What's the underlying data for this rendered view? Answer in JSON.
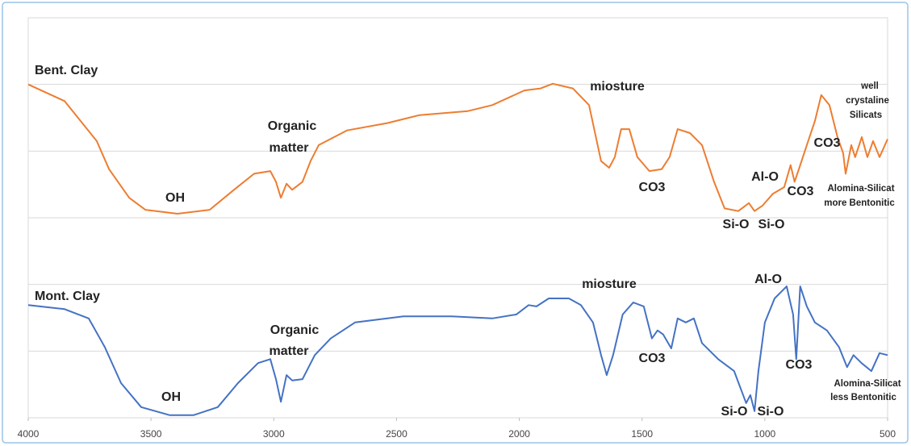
{
  "chart_data": {
    "type": "line",
    "xlim": [
      4000,
      500
    ],
    "xticks": [
      4000,
      3500,
      3000,
      2500,
      2000,
      1500,
      1000,
      500
    ],
    "ylim": [
      0,
      6
    ],
    "yticks": [
      0,
      1,
      2,
      3,
      4,
      5,
      6
    ],
    "grid": true,
    "series": [
      {
        "name": "Bent. Clay",
        "color": "#ED7D31",
        "x": [
          4000,
          3852,
          3721,
          3671,
          3589,
          3523,
          3392,
          3261,
          3162,
          3080,
          3014,
          2991,
          2971,
          2948,
          2925,
          2883,
          2850,
          2817,
          2702,
          2538,
          2406,
          2209,
          2110,
          1979,
          1913,
          1864,
          1782,
          1716,
          1667,
          1634,
          1611,
          1585,
          1552,
          1519,
          1470,
          1420,
          1388,
          1355,
          1305,
          1256,
          1207,
          1164,
          1108,
          1065,
          1042,
          1010,
          967,
          921,
          895,
          879,
          862,
          829,
          796,
          770,
          737,
          704,
          681,
          671,
          648,
          632,
          605,
          582,
          559,
          533,
          500
        ],
        "values": [
          5.0,
          4.75,
          4.15,
          3.73,
          3.3,
          3.12,
          3.06,
          3.12,
          3.42,
          3.66,
          3.7,
          3.54,
          3.3,
          3.51,
          3.42,
          3.54,
          3.85,
          4.09,
          4.31,
          4.42,
          4.54,
          4.6,
          4.69,
          4.91,
          4.94,
          5.01,
          4.94,
          4.69,
          3.85,
          3.75,
          3.91,
          4.33,
          4.33,
          3.91,
          3.7,
          3.73,
          3.91,
          4.33,
          4.27,
          4.09,
          3.54,
          3.14,
          3.1,
          3.22,
          3.1,
          3.18,
          3.36,
          3.46,
          3.79,
          3.54,
          3.72,
          4.09,
          4.45,
          4.84,
          4.69,
          4.21,
          3.97,
          3.66,
          4.09,
          3.91,
          4.21,
          3.91,
          4.15,
          3.91,
          4.18
        ]
      },
      {
        "name": "Mont. Clay",
        "color": "#4472C4",
        "x": [
          4000,
          3852,
          3754,
          3688,
          3622,
          3540,
          3425,
          3326,
          3228,
          3146,
          3064,
          3014,
          2991,
          2971,
          2948,
          2925,
          2883,
          2833,
          2768,
          2669,
          2472,
          2275,
          2110,
          2012,
          1962,
          1930,
          1880,
          1798,
          1749,
          1700,
          1667,
          1644,
          1618,
          1579,
          1536,
          1493,
          1460,
          1437,
          1414,
          1381,
          1355,
          1322,
          1289,
          1256,
          1190,
          1125,
          1076,
          1059,
          1042,
          1026,
          1000,
          960,
          911,
          885,
          872,
          856,
          829,
          796,
          747,
          698,
          665,
          639,
          606,
          566,
          533,
          500
        ],
        "values": [
          1.69,
          1.63,
          1.49,
          1.06,
          0.52,
          0.16,
          0.04,
          0.04,
          0.16,
          0.52,
          0.82,
          0.88,
          0.58,
          0.24,
          0.64,
          0.56,
          0.58,
          0.94,
          1.19,
          1.43,
          1.52,
          1.52,
          1.49,
          1.55,
          1.69,
          1.67,
          1.79,
          1.79,
          1.69,
          1.43,
          0.94,
          0.64,
          0.94,
          1.55,
          1.73,
          1.67,
          1.19,
          1.31,
          1.25,
          1.04,
          1.49,
          1.43,
          1.49,
          1.12,
          0.88,
          0.7,
          0.22,
          0.34,
          0.1,
          0.7,
          1.43,
          1.79,
          1.97,
          1.55,
          0.88,
          1.97,
          1.67,
          1.43,
          1.31,
          1.06,
          0.76,
          0.94,
          0.82,
          0.7,
          0.97,
          0.94
        ]
      }
    ],
    "annotations": [
      "Organic",
      "matter",
      "OH",
      "miosture",
      "well",
      "crystaline",
      "Silicats",
      "CO3",
      "Al-O",
      "CO3",
      "CO3",
      "Alomina-Silicat",
      "more Bentonitic",
      "Si-O",
      "Si-O",
      "miosture",
      "Al-O",
      "Organic",
      "matter",
      "CO3",
      "CO3",
      "Alomina-Silicat",
      "less Bentonitic",
      "OH",
      "Si-O",
      "Si-O"
    ]
  }
}
